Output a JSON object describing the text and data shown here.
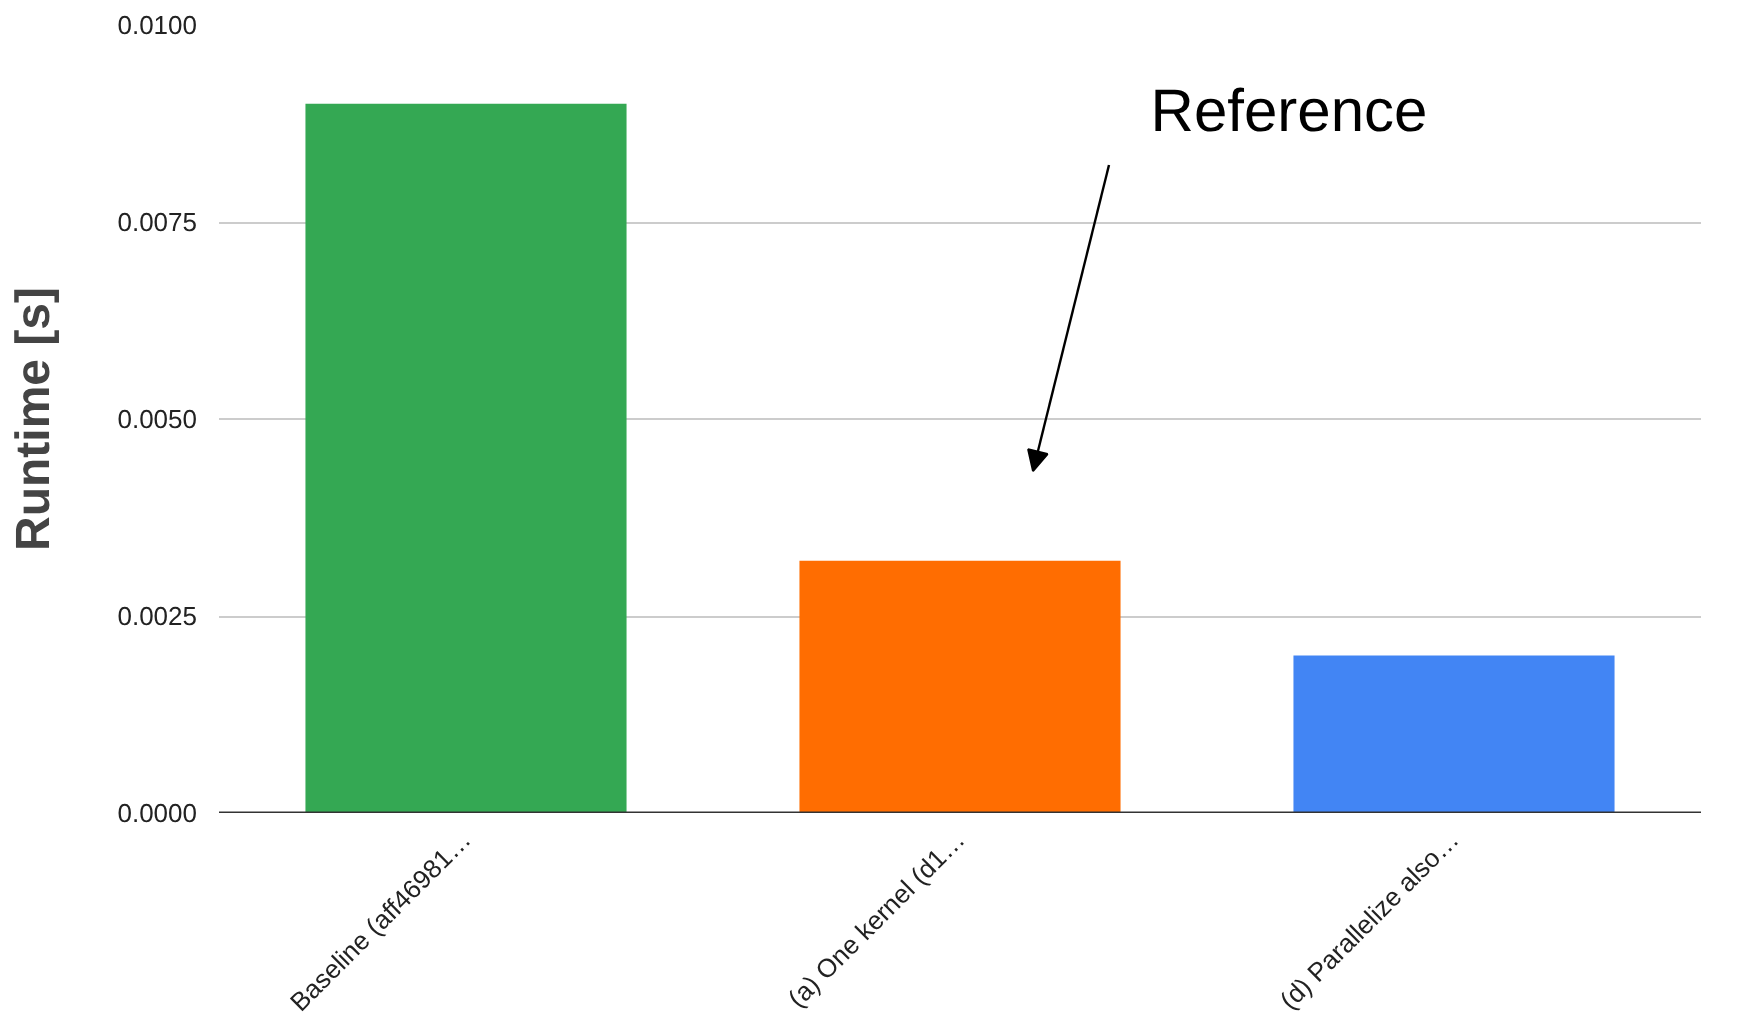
{
  "chart_data": {
    "type": "bar",
    "ylabel": "Runtime [s]",
    "categories": [
      "Baseline (aff46981…",
      "(a) One kernel (d1…",
      "(d) Parallelize also…"
    ],
    "values": [
      0.009,
      0.0032,
      0.002
    ],
    "colors": [
      "#34a853",
      "#ff6d01",
      "#4285f4"
    ],
    "ylim": [
      0,
      0.01
    ],
    "yticks": [
      {
        "value": 0,
        "label": "0.0000"
      },
      {
        "value": 0.0025,
        "label": "0.0025"
      },
      {
        "value": 0.005,
        "label": "0.0050"
      },
      {
        "value": 0.0075,
        "label": "0.0075"
      },
      {
        "value": 0.01,
        "label": "0.0100"
      }
    ],
    "grid": "y",
    "annotations": [
      "Reference"
    ]
  }
}
